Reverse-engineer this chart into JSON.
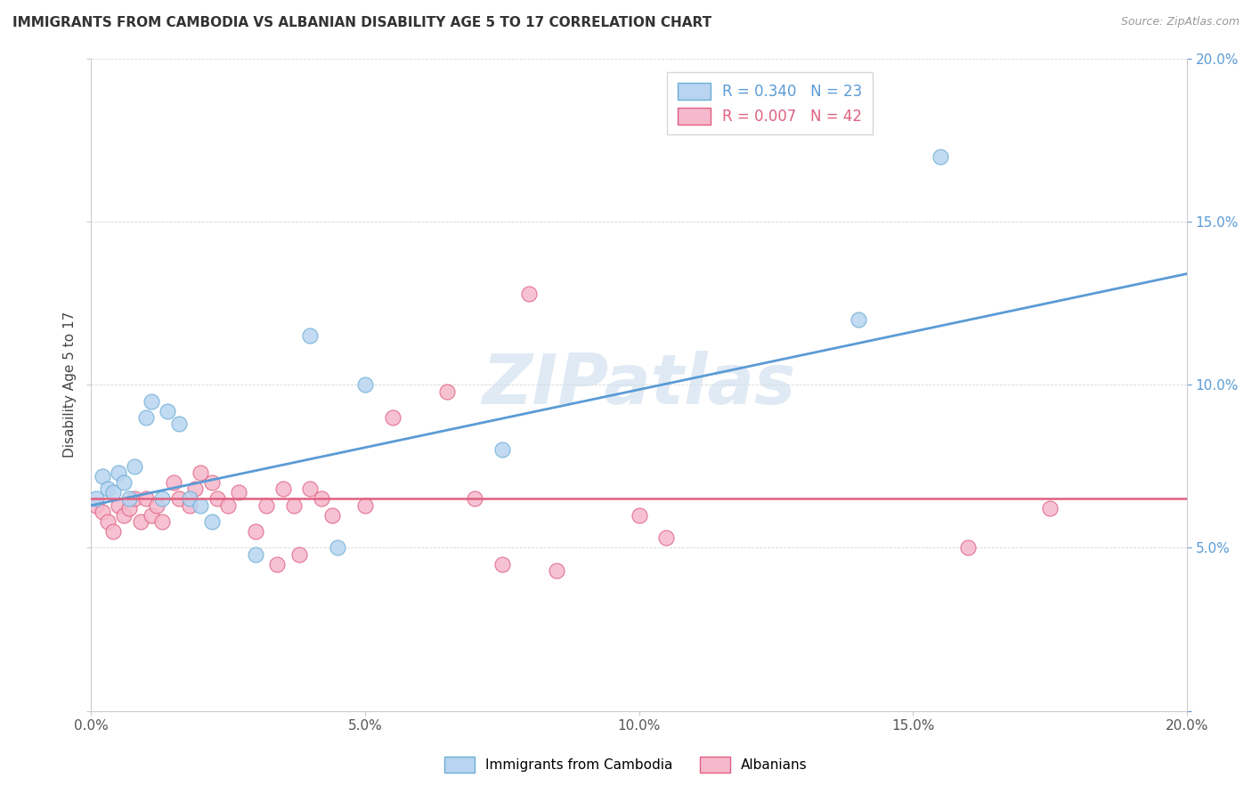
{
  "title": "IMMIGRANTS FROM CAMBODIA VS ALBANIAN DISABILITY AGE 5 TO 17 CORRELATION CHART",
  "source": "Source: ZipAtlas.com",
  "ylabel": "Disability Age 5 to 17",
  "xlim": [
    0,
    0.2
  ],
  "ylim": [
    0,
    0.2
  ],
  "xticks": [
    0.0,
    0.05,
    0.1,
    0.15,
    0.2
  ],
  "yticks": [
    0.0,
    0.05,
    0.1,
    0.15,
    0.2
  ],
  "xticklabels": [
    "0.0%",
    "5.0%",
    "10.0%",
    "15.0%",
    "20.0%"
  ],
  "right_yticklabels": [
    "",
    "5.0%",
    "10.0%",
    "15.0%",
    "20.0%"
  ],
  "legend_1_label": "Immigrants from Cambodia",
  "legend_2_label": "Albanians",
  "R1": 0.34,
  "N1": 23,
  "R2": 0.007,
  "N2": 42,
  "series1_color": "#b8d4f0",
  "series1_edge_color": "#6aaed6",
  "series2_color": "#f5b8cc",
  "series2_edge_color": "#e06080",
  "trend1_color": "#5b9bd5",
  "trend2_color": "#e06080",
  "watermark": "ZIPatlas",
  "watermark_color": "#ccdcee",
  "scatter1_x": [
    0.001,
    0.002,
    0.003,
    0.004,
    0.005,
    0.006,
    0.007,
    0.008,
    0.01,
    0.011,
    0.013,
    0.014,
    0.016,
    0.018,
    0.02,
    0.022,
    0.03,
    0.04,
    0.045,
    0.05,
    0.075,
    0.14,
    0.155
  ],
  "scatter1_y": [
    0.065,
    0.072,
    0.068,
    0.067,
    0.073,
    0.07,
    0.065,
    0.075,
    0.09,
    0.095,
    0.065,
    0.092,
    0.088,
    0.065,
    0.063,
    0.058,
    0.048,
    0.115,
    0.05,
    0.1,
    0.08,
    0.12,
    0.17
  ],
  "scatter2_x": [
    0.001,
    0.002,
    0.003,
    0.004,
    0.005,
    0.006,
    0.007,
    0.008,
    0.009,
    0.01,
    0.011,
    0.012,
    0.013,
    0.015,
    0.016,
    0.018,
    0.019,
    0.02,
    0.022,
    0.023,
    0.025,
    0.027,
    0.03,
    0.032,
    0.034,
    0.035,
    0.037,
    0.038,
    0.04,
    0.042,
    0.044,
    0.05,
    0.055,
    0.065,
    0.07,
    0.075,
    0.08,
    0.085,
    0.1,
    0.105,
    0.16,
    0.175
  ],
  "scatter2_y": [
    0.063,
    0.061,
    0.058,
    0.055,
    0.063,
    0.06,
    0.062,
    0.065,
    0.058,
    0.065,
    0.06,
    0.063,
    0.058,
    0.07,
    0.065,
    0.063,
    0.068,
    0.073,
    0.07,
    0.065,
    0.063,
    0.067,
    0.055,
    0.063,
    0.045,
    0.068,
    0.063,
    0.048,
    0.068,
    0.065,
    0.06,
    0.063,
    0.09,
    0.098,
    0.065,
    0.045,
    0.128,
    0.043,
    0.06,
    0.053,
    0.05,
    0.062
  ],
  "trend1_x0": 0.0,
  "trend1_y0": 0.063,
  "trend1_x1": 0.2,
  "trend1_y1": 0.134,
  "trend2_y": 0.065
}
